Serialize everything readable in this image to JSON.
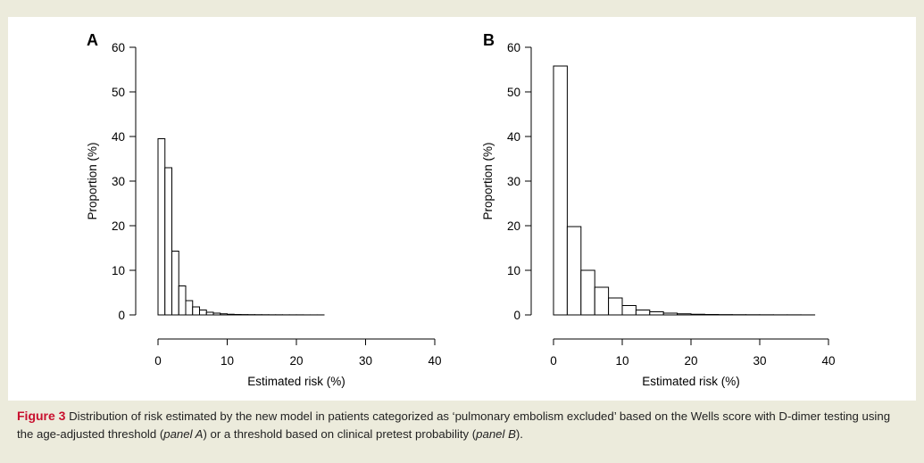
{
  "caption": {
    "label": "Figure 3",
    "text_1": " Distribution of risk estimated by the new model in patients categorized as ‘pulmonary embolism excluded’ based on the Wells score with D-dimer testing using the age-adjusted threshold (",
    "panel_a": "panel A",
    "text_2": ") or a threshold based on clinical pretest probability (",
    "panel_b": "panel B",
    "text_3": ")."
  },
  "chart_data": [
    {
      "type": "bar",
      "panel_label": "A",
      "xlabel": "Estimated risk (%)",
      "ylabel": "Proportion (%)",
      "xlim": [
        0,
        40
      ],
      "ylim": [
        0,
        60
      ],
      "xticks": [
        0,
        10,
        20,
        30,
        40
      ],
      "yticks": [
        0,
        10,
        20,
        30,
        40,
        50,
        60
      ],
      "bin_width": 1,
      "bin_start": 0,
      "values": [
        39.5,
        33.0,
        14.3,
        6.5,
        3.2,
        1.8,
        1.1,
        0.6,
        0.4,
        0.25,
        0.15,
        0.1,
        0.08,
        0.06,
        0.05,
        0.04,
        0.03,
        0.03,
        0.02,
        0.02,
        0.02,
        0.01,
        0.01,
        0.01
      ]
    },
    {
      "type": "bar",
      "panel_label": "B",
      "xlabel": "Estimated risk (%)",
      "ylabel": "Proportion (%)",
      "xlim": [
        0,
        40
      ],
      "ylim": [
        0,
        60
      ],
      "xticks": [
        0,
        10,
        20,
        30,
        40
      ],
      "yticks": [
        0,
        10,
        20,
        30,
        40,
        50,
        60
      ],
      "bin_width": 2,
      "bin_start": 0,
      "values": [
        55.8,
        19.8,
        10.0,
        6.2,
        3.8,
        2.1,
        1.1,
        0.7,
        0.4,
        0.25,
        0.15,
        0.1,
        0.07,
        0.05,
        0.04,
        0.03,
        0.02,
        0.02,
        0.01
      ]
    }
  ]
}
